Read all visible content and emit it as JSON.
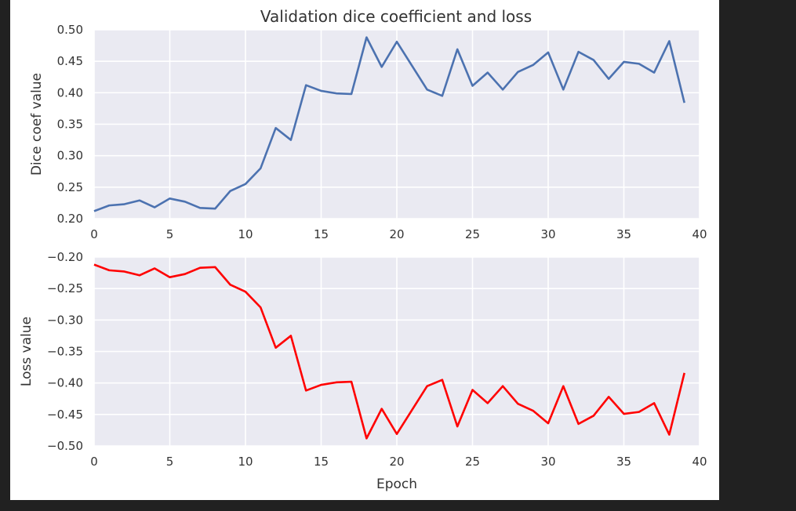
{
  "figure": {
    "title": "Validation dice coefficient and loss"
  },
  "chart_data": [
    {
      "type": "line",
      "title": "Validation dice coefficient and loss",
      "xlabel": "",
      "ylabel": "Dice coef value",
      "xlim": [
        0,
        40
      ],
      "ylim": [
        0.2,
        0.5
      ],
      "xticks": [
        0,
        5,
        10,
        15,
        20,
        25,
        30,
        35,
        40
      ],
      "xtick_labels": [
        "0",
        "5",
        "10",
        "15",
        "20",
        "25",
        "30",
        "35",
        "40"
      ],
      "yticks": [
        0.2,
        0.25,
        0.3,
        0.35,
        0.4,
        0.45,
        0.5
      ],
      "ytick_labels": [
        "0.20",
        "0.25",
        "0.30",
        "0.35",
        "0.40",
        "0.45",
        "0.50"
      ],
      "grid": true,
      "series": [
        {
          "color": "#4c72b0",
          "x": [
            0,
            1,
            2,
            3,
            4,
            5,
            6,
            7,
            8,
            9,
            10,
            11,
            12,
            13,
            14,
            15,
            16,
            17,
            18,
            19,
            20,
            21,
            22,
            23,
            24,
            25,
            26,
            27,
            28,
            29,
            30,
            31,
            32,
            33,
            34,
            35,
            36,
            37,
            38,
            39
          ],
          "values": [
            0.212,
            0.221,
            0.223,
            0.229,
            0.218,
            0.232,
            0.227,
            0.217,
            0.216,
            0.244,
            0.255,
            0.28,
            0.344,
            0.325,
            0.412,
            0.403,
            0.399,
            0.398,
            0.488,
            0.441,
            0.481,
            0.443,
            0.405,
            0.395,
            0.469,
            0.411,
            0.432,
            0.405,
            0.433,
            0.444,
            0.464,
            0.405,
            0.465,
            0.452,
            0.422,
            0.449,
            0.446,
            0.432,
            0.482,
            0.384
          ]
        }
      ]
    },
    {
      "type": "line",
      "title": "",
      "xlabel": "Epoch",
      "ylabel": "Loss value",
      "xlim": [
        0,
        40
      ],
      "ylim": [
        -0.5,
        -0.2
      ],
      "xticks": [
        0,
        5,
        10,
        15,
        20,
        25,
        30,
        35,
        40
      ],
      "xtick_labels": [
        "0",
        "5",
        "10",
        "15",
        "20",
        "25",
        "30",
        "35",
        "40"
      ],
      "yticks": [
        -0.5,
        -0.45,
        -0.4,
        -0.35,
        -0.3,
        -0.25,
        -0.2
      ],
      "ytick_labels": [
        "−0.50",
        "−0.45",
        "−0.40",
        "−0.35",
        "−0.30",
        "−0.25",
        "−0.20"
      ],
      "grid": true,
      "series": [
        {
          "color": "#ff0000",
          "x": [
            0,
            1,
            2,
            3,
            4,
            5,
            6,
            7,
            8,
            9,
            10,
            11,
            12,
            13,
            14,
            15,
            16,
            17,
            18,
            19,
            20,
            21,
            22,
            23,
            24,
            25,
            26,
            27,
            28,
            29,
            30,
            31,
            32,
            33,
            34,
            35,
            36,
            37,
            38,
            39
          ],
          "values": [
            -0.212,
            -0.221,
            -0.223,
            -0.229,
            -0.218,
            -0.232,
            -0.227,
            -0.217,
            -0.216,
            -0.244,
            -0.255,
            -0.28,
            -0.344,
            -0.325,
            -0.412,
            -0.403,
            -0.399,
            -0.398,
            -0.488,
            -0.441,
            -0.481,
            -0.443,
            -0.405,
            -0.395,
            -0.469,
            -0.411,
            -0.432,
            -0.405,
            -0.433,
            -0.444,
            -0.464,
            -0.405,
            -0.465,
            -0.452,
            -0.422,
            -0.449,
            -0.446,
            -0.432,
            -0.482,
            -0.384
          ]
        }
      ]
    }
  ]
}
